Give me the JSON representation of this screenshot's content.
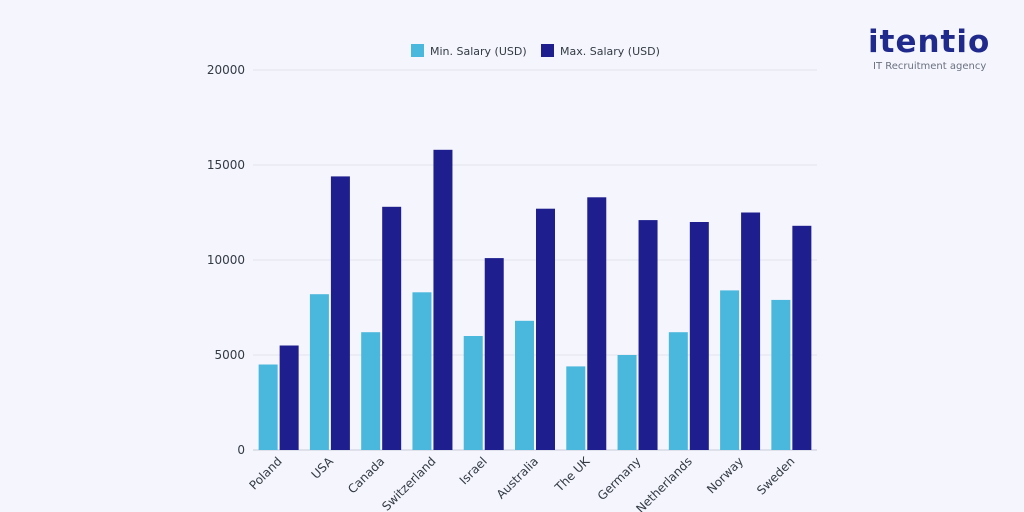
{
  "brand": {
    "name": "itentio",
    "tagline": "IT Recruitment agency"
  },
  "chart_data": {
    "type": "bar",
    "categories": [
      "Poland",
      "USA",
      "Canada",
      "Switzerland",
      "Israel",
      "Australia",
      "The UK",
      "Germany",
      "Netherlands",
      "Norway",
      "Sweden"
    ],
    "series": [
      {
        "name": "Min. Salary (USD)",
        "color": "#4ab8dc",
        "values": [
          4500,
          8200,
          6200,
          8300,
          6000,
          6800,
          4400,
          5000,
          6200,
          8400,
          7900
        ]
      },
      {
        "name": "Max. Salary (USD)",
        "color": "#1e1e8e",
        "values": [
          5500,
          14400,
          12800,
          15800,
          10100,
          12700,
          13300,
          12100,
          12000,
          12500,
          11800
        ]
      }
    ],
    "ylim": [
      0,
      20000
    ],
    "yticks": [
      0,
      5000,
      10000,
      15000,
      20000
    ],
    "grid": true,
    "legend": "top"
  }
}
